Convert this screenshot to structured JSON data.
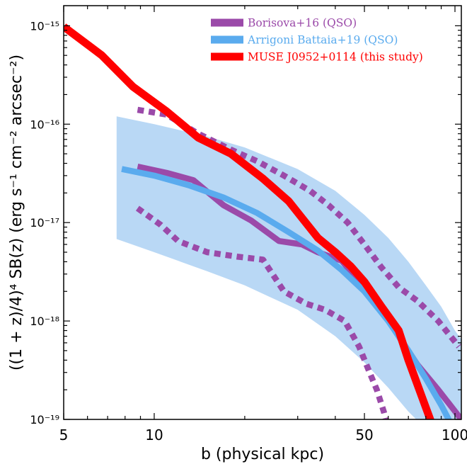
{
  "chart_data": {
    "type": "line",
    "xlabel": "b (physical kpc)",
    "ylabel": "((1 + z)/4)⁴ SB(z) (erg s⁻¹ cm⁻² arcsec⁻²)",
    "xscale": "log",
    "yscale": "log",
    "xlim": [
      5,
      105
    ],
    "ylim": [
      1e-19,
      1.6e-15
    ],
    "grid": false,
    "legend_position": "top-right",
    "x_ticks": [
      {
        "value": 5,
        "label": "5"
      },
      {
        "value": 10,
        "label": "10"
      },
      {
        "value": 50,
        "label": "50"
      },
      {
        "value": 100,
        "label": "100"
      }
    ],
    "y_ticks": [
      {
        "value": 1e-19,
        "label": "10⁻¹⁹"
      },
      {
        "value": 1e-18,
        "label": "10⁻¹⁸"
      },
      {
        "value": 1e-17,
        "label": "10⁻¹⁷"
      },
      {
        "value": 1e-16,
        "label": "10⁻¹⁶"
      },
      {
        "value": 1e-15,
        "label": "10⁻¹⁵"
      }
    ],
    "band": {
      "legend_ref": "Arrigoni Battaia+19 (QSO)",
      "color": "#b9d8f5",
      "x": [
        7.5,
        10,
        15,
        20,
        30,
        40,
        50,
        60,
        70,
        80,
        90,
        100,
        105
      ],
      "y_upper": [
        1.2e-16,
        1e-16,
        7.5e-17,
        5.8e-17,
        3.5e-17,
        2.1e-17,
        1.2e-17,
        7e-18,
        4e-18,
        2.3e-18,
        1.4e-18,
        8e-19,
        6.5e-19
      ],
      "y_lower": [
        6.8e-18,
        5e-18,
        3.2e-18,
        2.3e-18,
        1.3e-18,
        7e-19,
        3.8e-19,
        2.1e-19,
        1.2e-19,
        8e-20,
        8e-20,
        8e-20,
        8e-20
      ]
    },
    "series": [
      {
        "name": "Borisova+16 (QSO)",
        "color": "#9b4aa9",
        "style": "solid",
        "x": [
          8.8,
          11,
          13.5,
          17,
          21,
          26,
          31,
          35,
          42,
          50,
          58,
          66,
          75,
          88,
          105
        ],
        "y": [
          3.7e-17,
          3.2e-17,
          2.7e-17,
          1.5e-17,
          1.05e-17,
          6.5e-18,
          6e-18,
          5e-18,
          4.1e-18,
          2.2e-18,
          1.2e-18,
          6.5e-19,
          3.6e-19,
          2e-19,
          1e-19
        ]
      },
      {
        "name": "Borisova+16 (QSO) upper",
        "color": "#9b4aa9",
        "style": "dotted",
        "x": [
          8.8,
          11,
          14,
          18,
          22,
          27,
          33,
          38,
          44,
          50,
          57,
          65,
          75,
          88,
          103
        ],
        "y": [
          1.4e-16,
          1.25e-16,
          8e-17,
          5.5e-17,
          4.2e-17,
          3e-17,
          2.1e-17,
          1.5e-17,
          1e-17,
          6e-18,
          3.5e-18,
          2.2e-18,
          1.6e-18,
          1e-18,
          5.5e-19
        ]
      },
      {
        "name": "Borisova+16 (QSO) lower",
        "color": "#9b4aa9",
        "style": "dotted",
        "x": [
          8.8,
          10.5,
          12,
          15,
          19,
          23,
          27,
          32,
          37,
          43,
          48,
          52,
          55,
          58,
          60
        ],
        "y": [
          1.4e-17,
          9.5e-18,
          6.5e-18,
          5e-18,
          4.5e-18,
          4.2e-18,
          2e-18,
          1.5e-18,
          1.3e-18,
          1e-18,
          5.5e-19,
          3e-19,
          2e-19,
          1.2e-19,
          8e-20
        ]
      },
      {
        "name": "Arrigoni Battaia+19 (QSO)",
        "color": "#5aabee",
        "style": "solid",
        "x": [
          7.8,
          10,
          13,
          17,
          22,
          28,
          35,
          42,
          50,
          60,
          70,
          80,
          90,
          97
        ],
        "y": [
          3.5e-17,
          3e-17,
          2.4e-17,
          1.8e-17,
          1.25e-17,
          8e-18,
          5.2e-18,
          3.3e-18,
          2e-18,
          1e-18,
          5e-19,
          2.6e-19,
          1.4e-19,
          9e-20
        ]
      },
      {
        "name": "MUSE J0952+0114 (this study)",
        "color": "#ff0000",
        "style": "solid",
        "x": [
          5,
          6.7,
          8.5,
          11,
          14,
          18,
          23,
          28,
          35,
          40,
          45,
          50,
          57,
          65,
          70,
          85
        ],
        "y": [
          9.8e-16,
          5e-16,
          2.4e-16,
          1.35e-16,
          7.3e-17,
          5e-17,
          2.8e-17,
          1.65e-17,
          7e-18,
          5e-18,
          3.6e-18,
          2.5e-18,
          1.4e-18,
          8e-19,
          4e-19,
          8e-20
        ]
      }
    ],
    "legend": [
      {
        "label": "Borisova+16 (QSO)",
        "color": "#9b4aa9"
      },
      {
        "label": "Arrigoni Battaia+19 (QSO)",
        "color": "#5aabee"
      },
      {
        "label": "MUSE J0952+0114 (this study)",
        "color": "#ff0000"
      }
    ]
  }
}
